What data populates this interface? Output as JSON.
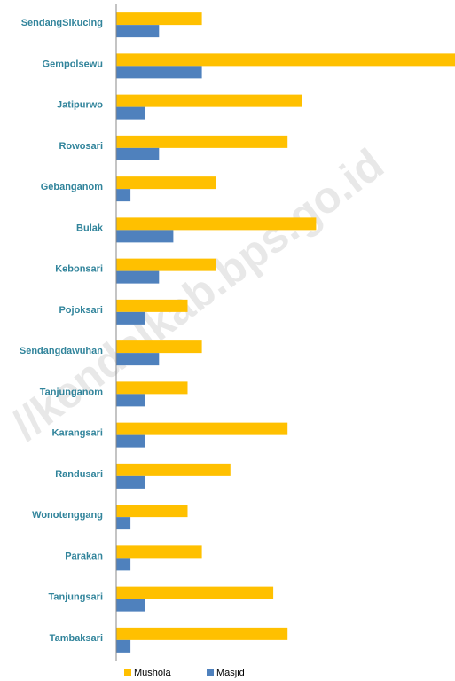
{
  "chart_data": {
    "type": "bar",
    "orientation": "horizontal",
    "watermark": "//kendalkab.bps.go.id",
    "categories": [
      "SendangSikucing",
      "Gempolsewu",
      "Jatipurwo",
      "Rowosari",
      "Gebanganom",
      "Bulak",
      "Kebonsari",
      "Pojoksari",
      "Sendangdawuhan",
      "Tanjunganom",
      "Karangsari",
      "Randusari",
      "Wonotenggang",
      "Parakan",
      "Tanjungsari",
      "Tambaksari"
    ],
    "series": [
      {
        "name": "Mushola",
        "color": "#ffc000",
        "values": [
          6,
          24,
          13,
          12,
          7,
          14,
          7,
          5,
          6,
          5,
          12,
          8,
          5,
          6,
          11,
          12
        ]
      },
      {
        "name": "Masjid",
        "color": "#4f81bd",
        "values": [
          3,
          6,
          2,
          3,
          1,
          4,
          3,
          2,
          3,
          2,
          2,
          2,
          1,
          1,
          2,
          1
        ]
      }
    ],
    "legend": "bottom"
  }
}
